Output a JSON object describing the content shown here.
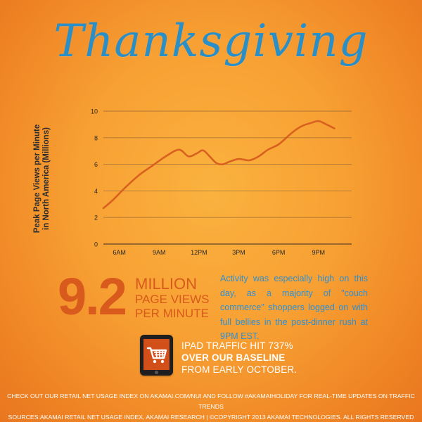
{
  "header": {
    "title": "Thanksgiving"
  },
  "chart_data": {
    "type": "line",
    "ylabel_line1": "Peak Page Views per Minute",
    "ylabel_line2": "in North America (Millions)",
    "xlabel": "",
    "ylim": [
      0,
      10
    ],
    "yticks": [
      0,
      2,
      4,
      6,
      8,
      10
    ],
    "xticks": [
      {
        "value": 6,
        "label": "6AM"
      },
      {
        "value": 9,
        "label": "9AM"
      },
      {
        "value": 12,
        "label": "12PM"
      },
      {
        "value": 15,
        "label": "3PM"
      },
      {
        "value": 18,
        "label": "6PM"
      },
      {
        "value": 21,
        "label": "9PM"
      }
    ],
    "xlim": [
      4.8,
      23.5
    ],
    "grid": true,
    "series": [
      {
        "color": "#d8611f",
        "x": [
          4.8,
          5.5,
          6.5,
          7.5,
          8.5,
          9.5,
          10.5,
          11.2,
          11.8,
          12.3,
          12.8,
          13.3,
          13.8,
          14.3,
          15.0,
          15.8,
          16.5,
          17.2,
          18.0,
          18.8,
          19.3,
          19.8,
          20.4,
          21.0,
          21.6,
          22.0,
          22.2
        ],
        "y": [
          2.7,
          3.3,
          4.3,
          5.2,
          5.9,
          6.6,
          7.1,
          6.6,
          6.8,
          7.05,
          6.6,
          6.1,
          6.0,
          6.2,
          6.4,
          6.3,
          6.6,
          7.1,
          7.5,
          8.2,
          8.6,
          8.9,
          9.1,
          9.25,
          9.0,
          8.8,
          8.7
        ]
      }
    ]
  },
  "stats": {
    "big_number": "9.2",
    "caption_line1": "MILLION",
    "caption_line2": "PAGE VIEWS",
    "caption_line3": "PER MINUTE"
  },
  "activity": {
    "text": "Activity was especially high on this day, as a majority of \"couch commerce\" shoppers logged on with full bellies in the post-dinner rush at 9PM EST."
  },
  "ipad": {
    "line1": "IPAD TRAFFIC HIT 737%",
    "line2": "OVER OUR BASELINE",
    "line3": "FROM EARLY OCTOBER."
  },
  "footer": {
    "line1": "CHECK OUT OUR RETAIL NET USAGE INDEX ON AKAMAI.COM/NUI AND FOLLOW #AKAMAIHOLIDAY FOR REAL-TIME UPDATES ON TRAFFIC TRENDS",
    "line2": "SOURCES:AKAMAI RETAIL NET USAGE INDEX, AKAMAI RESEARCH  |  ©COPYRIGHT 2013 AKAMAI TECHNOLOGIES. ALL RIGHTS RESERVED"
  },
  "colors": {
    "title": "#2a8fc6",
    "accent_orange": "#d85a1c",
    "body_blue": "#2f8fd0"
  }
}
